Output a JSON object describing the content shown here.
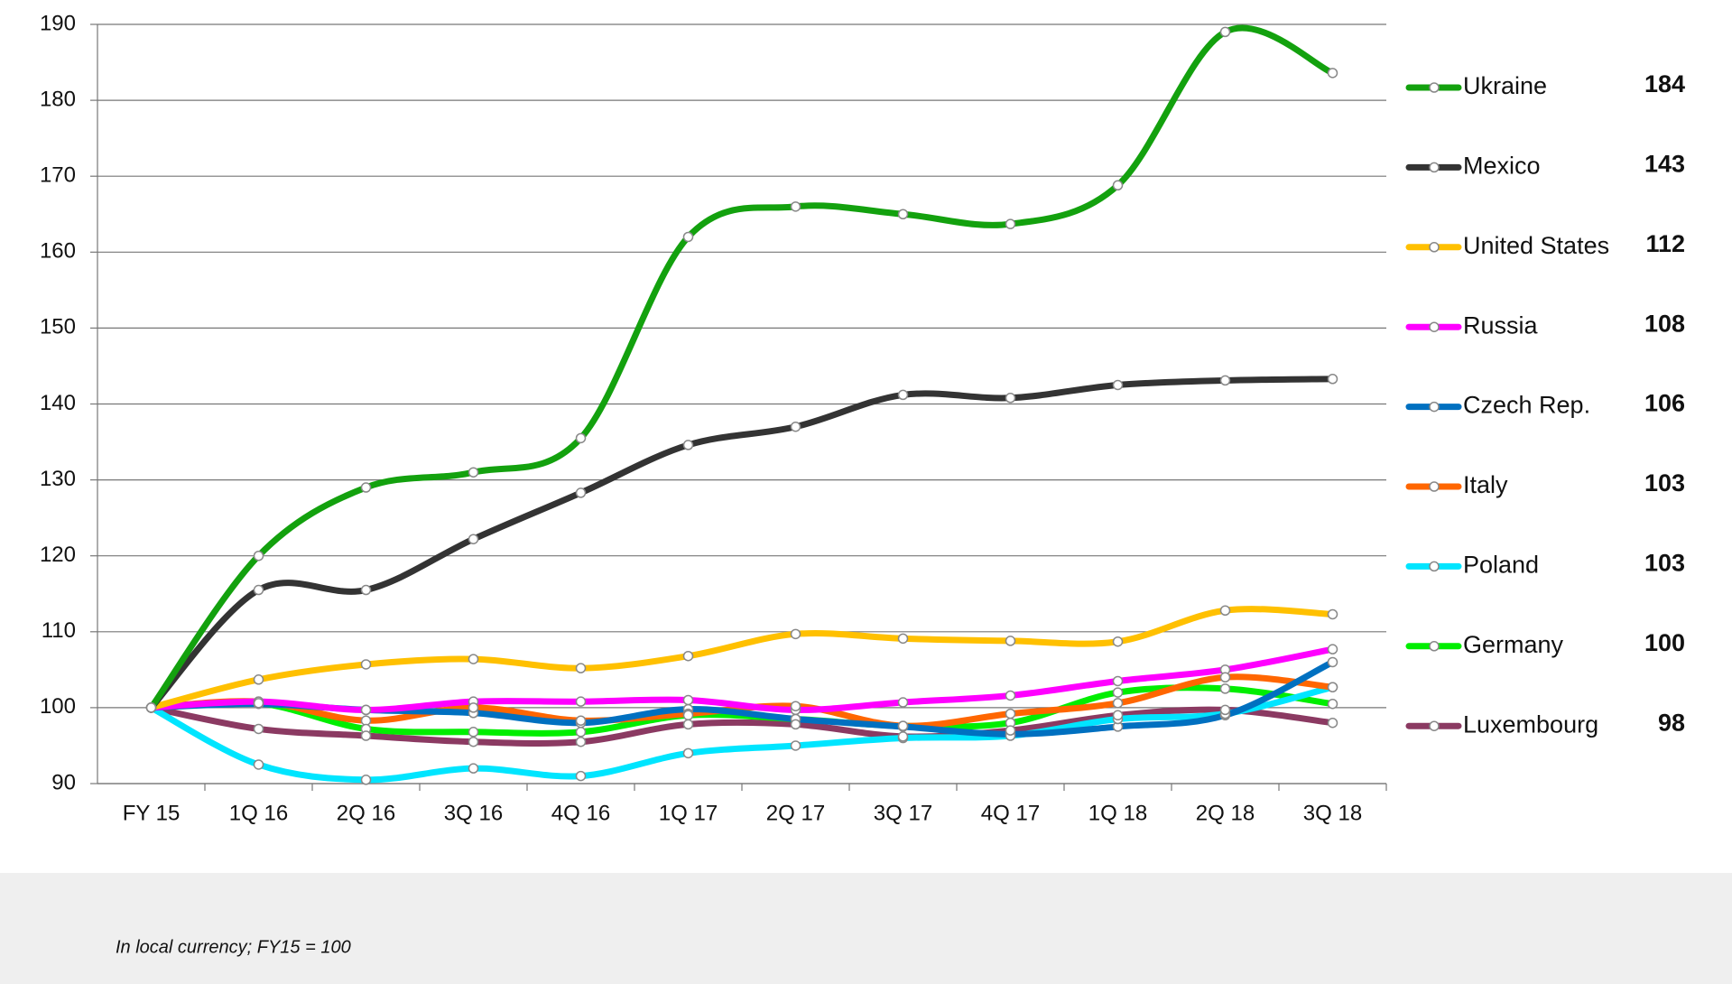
{
  "chart_data": {
    "type": "line",
    "note": "In local currency; FY15 = 100",
    "categories": [
      "FY 15",
      "1Q 16",
      "2Q 16",
      "3Q 16",
      "4Q 16",
      "1Q 17",
      "2Q 17",
      "3Q 17",
      "4Q 17",
      "1Q 18",
      "2Q 18",
      "3Q 18"
    ],
    "ylim": [
      90,
      190
    ],
    "yticks": [
      90,
      100,
      110,
      120,
      130,
      140,
      150,
      160,
      170,
      180,
      190
    ],
    "grid": true,
    "legend": "right",
    "series": [
      {
        "name": "Ukraine",
        "color": "#13a10e",
        "latest": 184,
        "values": [
          100,
          120,
          129,
          131,
          135.5,
          162,
          166,
          165,
          163.7,
          168.8,
          189,
          183.6
        ]
      },
      {
        "name": "Mexico",
        "color": "#333333",
        "latest": 143,
        "values": [
          100,
          115.5,
          115.5,
          122.2,
          128.3,
          134.6,
          137,
          141.2,
          140.8,
          142.5,
          143.1,
          143.3
        ]
      },
      {
        "name": "United States",
        "color": "#ffc000",
        "latest": 112,
        "values": [
          100,
          103.7,
          105.7,
          106.4,
          105.2,
          106.8,
          109.7,
          109.1,
          108.8,
          108.7,
          112.8,
          112.3
        ]
      },
      {
        "name": "Russia",
        "color": "#ff00ff",
        "latest": 108,
        "values": [
          100,
          100.8,
          99.7,
          100.8,
          100.8,
          101,
          99.7,
          100.7,
          101.6,
          103.5,
          105,
          107.7
        ]
      },
      {
        "name": "Czech Rep.",
        "color": "#0070c0",
        "latest": 106,
        "values": [
          100,
          100.5,
          99.7,
          99.3,
          98,
          99.8,
          98.5,
          97.5,
          96.5,
          97.5,
          99,
          106
        ]
      },
      {
        "name": "Italy",
        "color": "#ff6600",
        "latest": 103,
        "values": [
          100,
          100.8,
          98.3,
          100,
          98.3,
          99.2,
          100.2,
          97.6,
          99.2,
          100.6,
          104,
          102.7
        ]
      },
      {
        "name": "Poland",
        "color": "#00e5ff",
        "latest": 103,
        "values": [
          100,
          92.5,
          90.5,
          92,
          91,
          94,
          95,
          96,
          96.3,
          98.5,
          99.2,
          102.7
        ]
      },
      {
        "name": "Germany",
        "color": "#00ee00",
        "latest": 100,
        "values": [
          100,
          100.6,
          97.2,
          96.8,
          96.8,
          99,
          98.5,
          97.6,
          98,
          102,
          102.5,
          100.5
        ]
      },
      {
        "name": "Luxembourg",
        "color": "#8b3a62",
        "latest": 98,
        "values": [
          100,
          97.2,
          96.3,
          95.5,
          95.5,
          97.8,
          97.8,
          96.2,
          97,
          99,
          99.7,
          98
        ]
      }
    ]
  }
}
